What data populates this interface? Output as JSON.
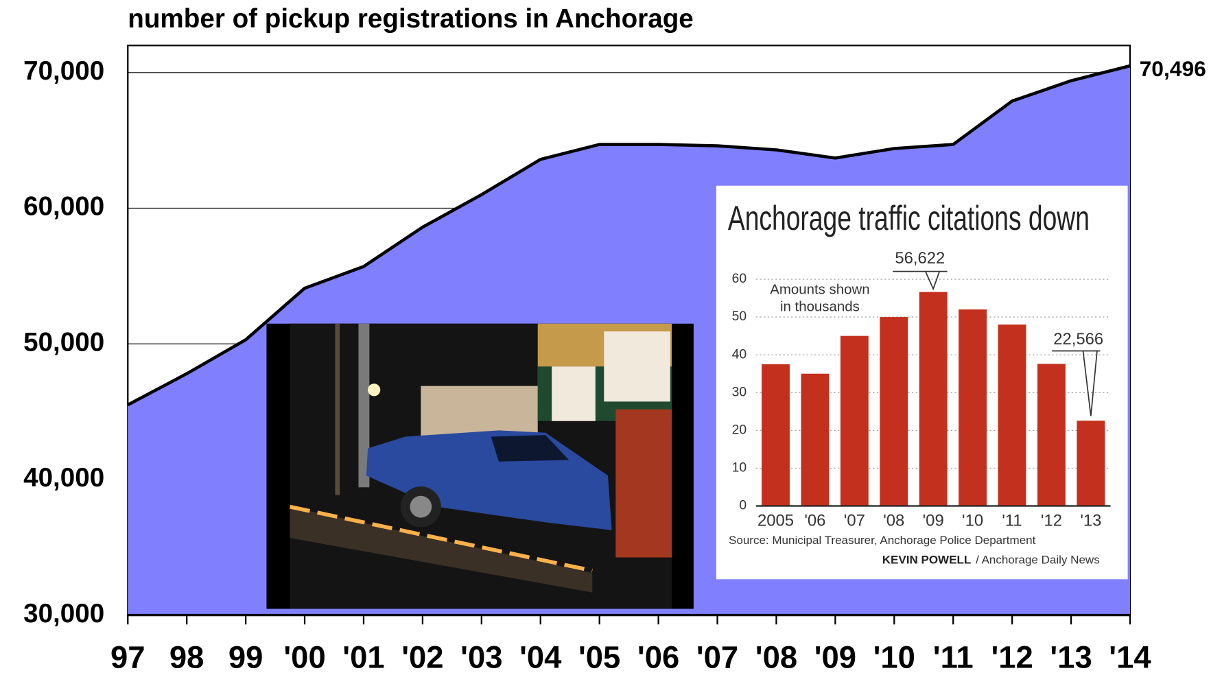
{
  "chart_data": [
    {
      "type": "area",
      "title": "number of pickup registrations in Anchorage",
      "categories": [
        "97",
        "98",
        "99",
        "'00",
        "'01",
        "'02",
        "'03",
        "'04",
        "'05",
        "'06",
        "'07",
        "'08",
        "'09",
        "'10",
        "'11",
        "'12",
        "'13",
        "'14"
      ],
      "values": [
        45500,
        47800,
        50300,
        54100,
        55700,
        58600,
        61000,
        63600,
        64700,
        64700,
        64600,
        64300,
        63700,
        64400,
        64700,
        67900,
        69400,
        70496
      ],
      "value_labels": [
        null,
        null,
        null,
        null,
        null,
        null,
        null,
        null,
        null,
        null,
        null,
        null,
        null,
        null,
        null,
        null,
        null,
        "70,496"
      ],
      "color": "#8080ff",
      "ylim": [
        30000,
        72000
      ],
      "yticks": [
        {
          "value": 30000,
          "label": "30,000"
        },
        {
          "value": 40000,
          "label": "40,000"
        },
        {
          "value": 50000,
          "label": "50,000"
        },
        {
          "value": 60000,
          "label": "60,000"
        },
        {
          "value": 70000,
          "label": "70,000"
        }
      ],
      "grid": true
    },
    {
      "type": "bar",
      "title": "Anchorage traffic citations down",
      "note": [
        "Amounts shown",
        "in thousands"
      ],
      "source": "Source: Municipal Treasurer, Anchorage Police Department",
      "credit": "KEVIN POWELL",
      "publication": "/ Anchorage Daily News",
      "categories": [
        "2005",
        "'06",
        "'07",
        "'08",
        "'09",
        "'10",
        "'11",
        "'12",
        "'13"
      ],
      "values": [
        37.5,
        35,
        45,
        50,
        56.622,
        52,
        48,
        37.6,
        22.566
      ],
      "value_labels": [
        null,
        null,
        null,
        null,
        "56,622",
        null,
        null,
        null,
        "22,566"
      ],
      "color": "#c4301e",
      "ylim": [
        0,
        60
      ],
      "yticks": [
        0,
        10,
        20,
        30,
        40,
        50,
        60
      ],
      "grid": true
    }
  ]
}
